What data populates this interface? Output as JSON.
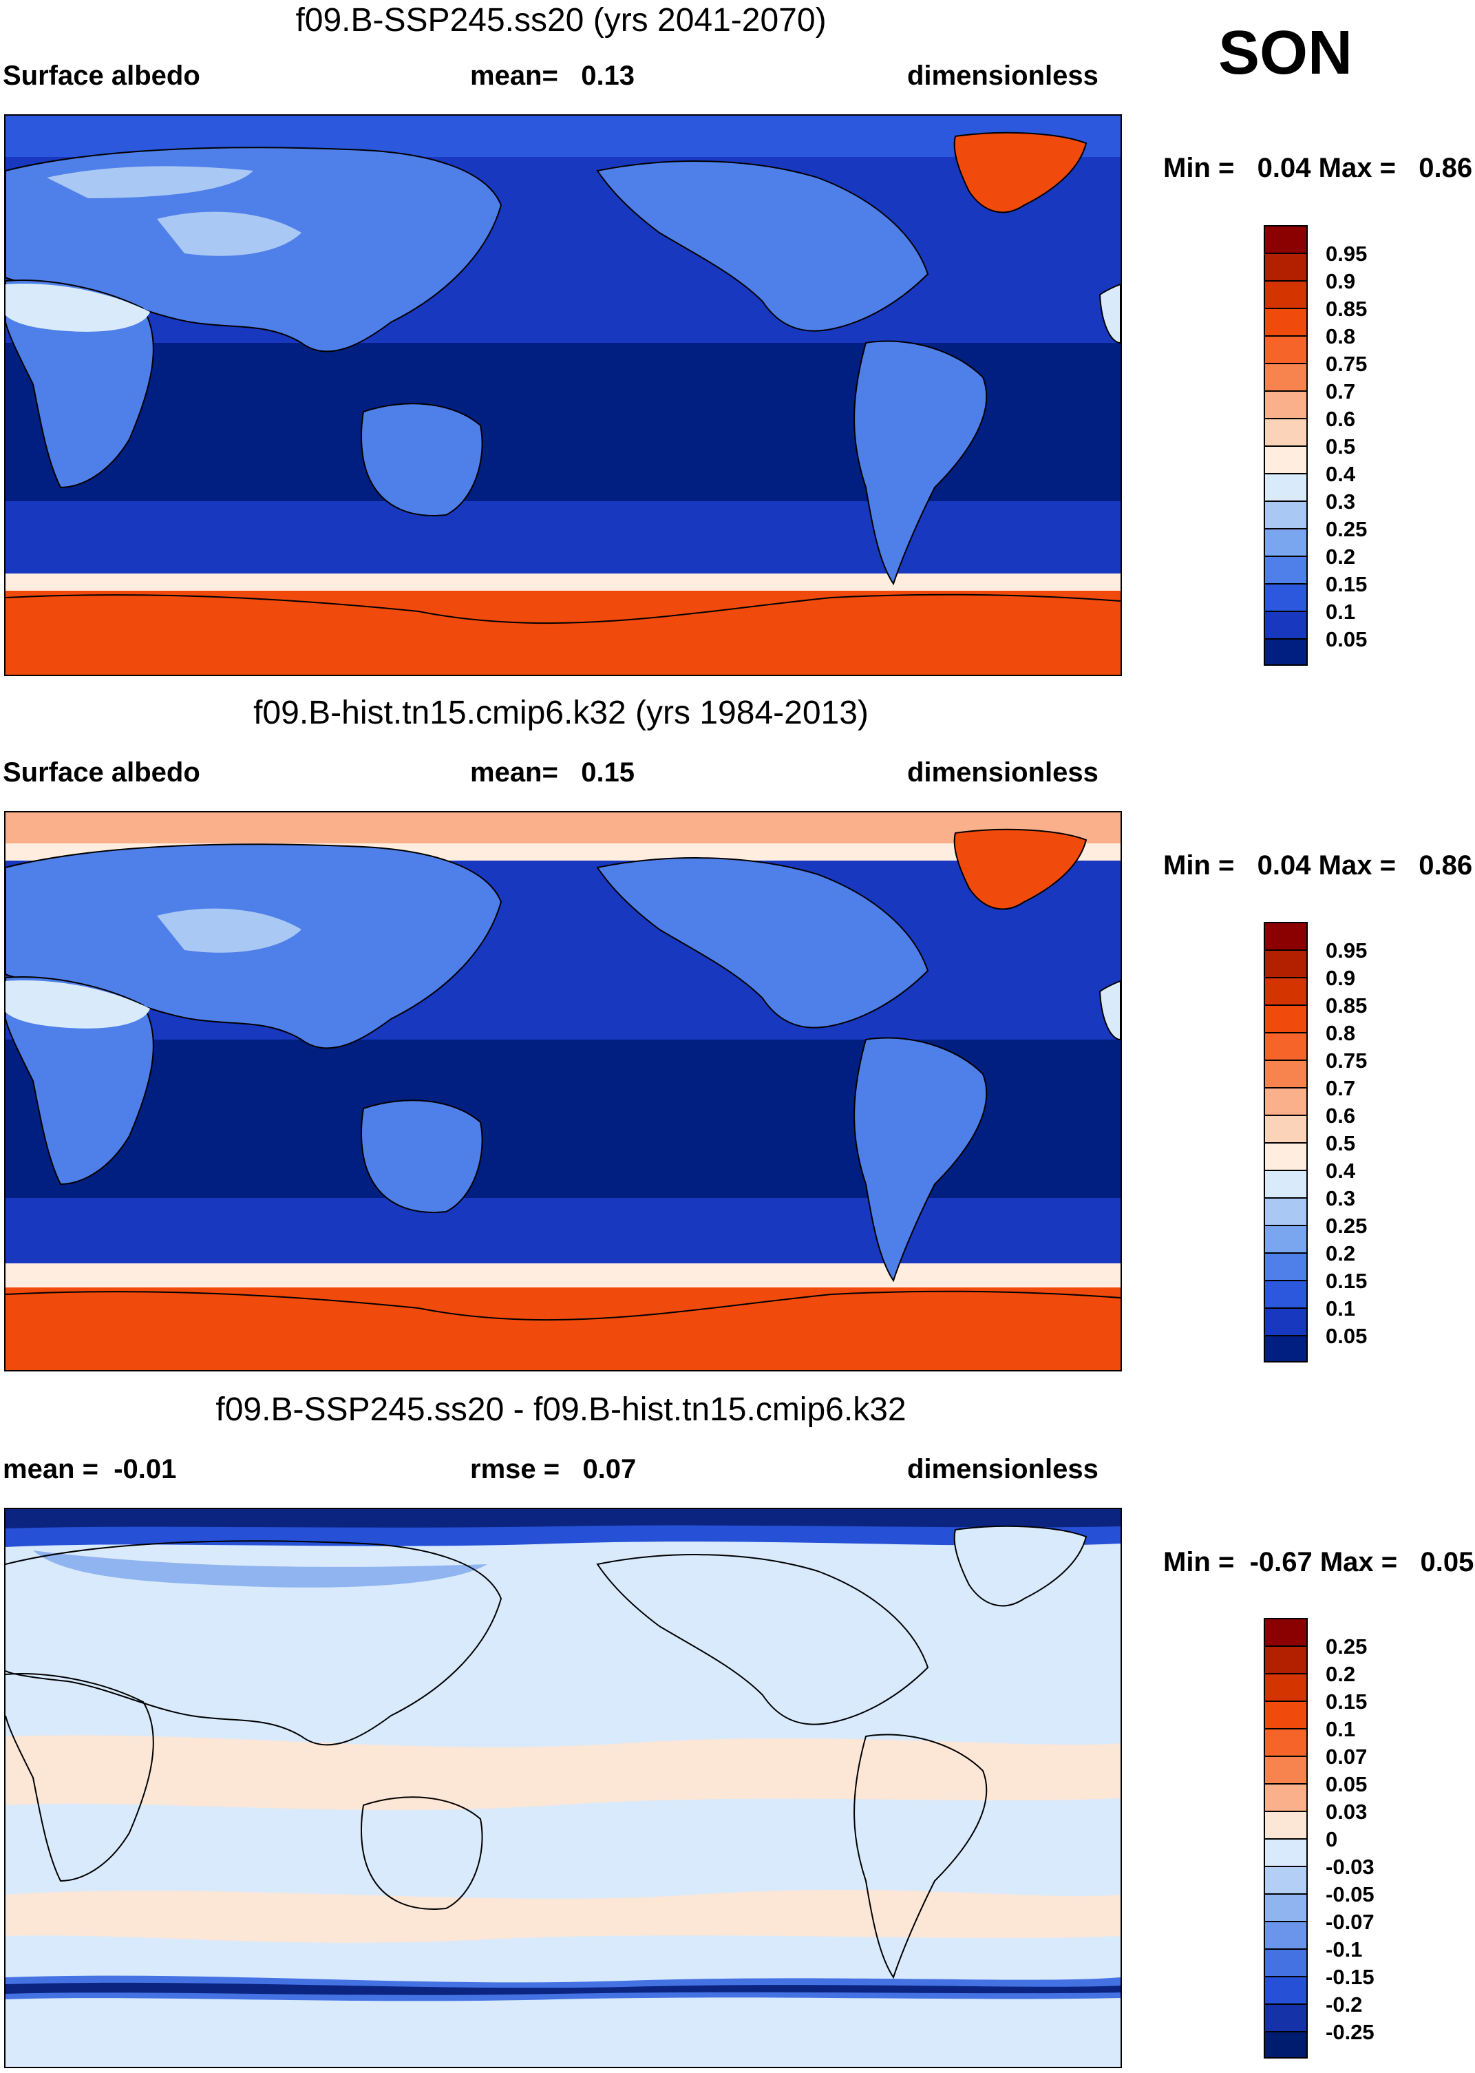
{
  "season": "SON",
  "panels": [
    {
      "id": "p1",
      "title": "f09.B-SSP245.ss20 (yrs 2041-2070)",
      "left_label": "Surface albedo",
      "center_label": "mean=   0.13",
      "right_label": "dimensionless",
      "minmax": "Min =   0.04 Max =   0.86",
      "palette": "abs"
    },
    {
      "id": "p2",
      "title": "f09.B-hist.tn15.cmip6.k32 (yrs 1984-2013)",
      "left_label": "Surface albedo",
      "center_label": "mean=   0.15",
      "right_label": "dimensionless",
      "minmax": "Min =   0.04 Max =   0.86",
      "palette": "abs"
    },
    {
      "id": "p3",
      "title": "f09.B-SSP245.ss20 - f09.B-hist.tn15.cmip6.k32",
      "left_label": "mean =  -0.01",
      "center_label": "rmse =   0.07",
      "right_label": "dimensionless",
      "minmax": "Min =  -0.67 Max =   0.05",
      "palette": "diff"
    }
  ],
  "colorbars": {
    "abs": {
      "labels": [
        "0.95",
        "0.9",
        "0.85",
        "0.8",
        "0.75",
        "0.7",
        "0.6",
        "0.5",
        "0.4",
        "0.3",
        "0.25",
        "0.2",
        "0.15",
        "0.1",
        "0.05"
      ],
      "colors": [
        "#8b0000",
        "#b22000",
        "#d43500",
        "#f04a0c",
        "#f6642a",
        "#f7834f",
        "#f9b08b",
        "#fbd3b8",
        "#ffeedf",
        "#d9ebfb",
        "#a9c8f4",
        "#7aa6ef",
        "#4f7fe8",
        "#2b58dc",
        "#1838c0",
        "#001f80"
      ]
    },
    "diff": {
      "labels": [
        "0.25",
        "0.2",
        "0.15",
        "0.1",
        "0.07",
        "0.05",
        "0.03",
        "0",
        "-0.03",
        "-0.05",
        "-0.07",
        "-0.1",
        "-0.15",
        "-0.2",
        "-0.25"
      ],
      "colors": [
        "#8b0000",
        "#b22000",
        "#d43500",
        "#f04a0c",
        "#f6642a",
        "#f7834f",
        "#f9b08b",
        "#fce6d6",
        "#d8eafb",
        "#b3cff5",
        "#8fb4f0",
        "#6b95ea",
        "#4572e3",
        "#2650d6",
        "#1632a8",
        "#001c6e"
      ]
    }
  },
  "map_colors": {
    "ocean_deep": "#001f80",
    "ocean": "#1838c0",
    "ocean_mid": "#2b58dc",
    "land": "#4f7fe8",
    "land_light": "#a9c8f4",
    "desert": "#d9ebfb",
    "ice": "#f04a0c",
    "ice_edge": "#f6642a",
    "snow_band": "#ffeedf",
    "diff_light": "#d8eafb",
    "diff_peach": "#fce6d6",
    "diff_blue": "#4572e3",
    "diff_dark": "#0a2480"
  }
}
